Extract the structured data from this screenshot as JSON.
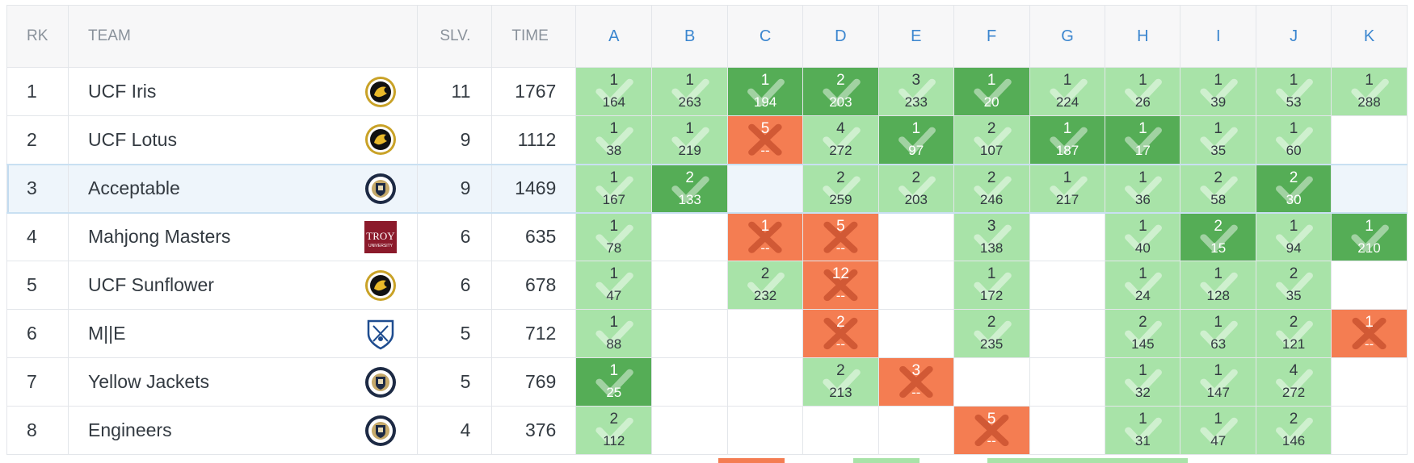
{
  "headers": {
    "rank": "RK",
    "team": "TEAM",
    "solved": "SLV.",
    "time": "TIME",
    "problems": [
      "A",
      "B",
      "C",
      "D",
      "E",
      "F",
      "G",
      "H",
      "I",
      "J",
      "K"
    ]
  },
  "colors": {
    "solved": "#a8e3a8",
    "first_solve": "#55ad56",
    "wrong": "#f47d52",
    "header_link": "#3b86cf"
  },
  "rows": [
    {
      "rank": "1",
      "team": "UCF Iris",
      "logo": "ucf-pegasus-logo",
      "solved": "11",
      "time": "1767",
      "cells": [
        {
          "s": "solved",
          "a": "1",
          "t": "164"
        },
        {
          "s": "solved",
          "a": "1",
          "t": "263"
        },
        {
          "s": "first",
          "a": "1",
          "t": "194"
        },
        {
          "s": "first",
          "a": "2",
          "t": "203"
        },
        {
          "s": "solved",
          "a": "3",
          "t": "233"
        },
        {
          "s": "first",
          "a": "1",
          "t": "20"
        },
        {
          "s": "solved",
          "a": "1",
          "t": "224"
        },
        {
          "s": "solved",
          "a": "1",
          "t": "26"
        },
        {
          "s": "solved",
          "a": "1",
          "t": "39"
        },
        {
          "s": "solved",
          "a": "1",
          "t": "53"
        },
        {
          "s": "solved",
          "a": "1",
          "t": "288"
        }
      ]
    },
    {
      "rank": "2",
      "team": "UCF Lotus",
      "logo": "ucf-pegasus-logo",
      "solved": "9",
      "time": "1112",
      "cells": [
        {
          "s": "solved",
          "a": "1",
          "t": "38"
        },
        {
          "s": "solved",
          "a": "1",
          "t": "219"
        },
        {
          "s": "wrong",
          "a": "5",
          "t": "--"
        },
        {
          "s": "solved",
          "a": "4",
          "t": "272"
        },
        {
          "s": "first",
          "a": "1",
          "t": "97"
        },
        {
          "s": "solved",
          "a": "2",
          "t": "107"
        },
        {
          "s": "first",
          "a": "1",
          "t": "187"
        },
        {
          "s": "first",
          "a": "1",
          "t": "17"
        },
        {
          "s": "solved",
          "a": "1",
          "t": "35"
        },
        {
          "s": "solved",
          "a": "1",
          "t": "60"
        },
        {
          "s": "empty",
          "a": "",
          "t": ""
        }
      ]
    },
    {
      "rank": "3",
      "team": "Acceptable",
      "logo": "georgia-tech-seal-logo",
      "solved": "9",
      "time": "1469",
      "highlight": true,
      "cells": [
        {
          "s": "solved",
          "a": "1",
          "t": "167"
        },
        {
          "s": "first",
          "a": "2",
          "t": "133"
        },
        {
          "s": "empty",
          "a": "",
          "t": ""
        },
        {
          "s": "solved",
          "a": "2",
          "t": "259"
        },
        {
          "s": "solved",
          "a": "2",
          "t": "203"
        },
        {
          "s": "solved",
          "a": "2",
          "t": "246"
        },
        {
          "s": "solved",
          "a": "1",
          "t": "217"
        },
        {
          "s": "solved",
          "a": "1",
          "t": "36"
        },
        {
          "s": "solved",
          "a": "2",
          "t": "58"
        },
        {
          "s": "first",
          "a": "2",
          "t": "30"
        },
        {
          "s": "empty",
          "a": "",
          "t": ""
        }
      ]
    },
    {
      "rank": "4",
      "team": "Mahjong Masters",
      "logo": "troy-university-logo",
      "logo_text": "TROY",
      "logo_sub": "UNIVERSITY",
      "solved": "6",
      "time": "635",
      "cells": [
        {
          "s": "solved",
          "a": "1",
          "t": "78"
        },
        {
          "s": "empty",
          "a": "",
          "t": ""
        },
        {
          "s": "wrong",
          "a": "1",
          "t": "--"
        },
        {
          "s": "wrong",
          "a": "5",
          "t": "--"
        },
        {
          "s": "empty",
          "a": "",
          "t": ""
        },
        {
          "s": "solved",
          "a": "3",
          "t": "138"
        },
        {
          "s": "empty",
          "a": "",
          "t": ""
        },
        {
          "s": "solved",
          "a": "1",
          "t": "40"
        },
        {
          "s": "first",
          "a": "2",
          "t": "15"
        },
        {
          "s": "solved",
          "a": "1",
          "t": "94"
        },
        {
          "s": "first",
          "a": "1",
          "t": "210"
        }
      ]
    },
    {
      "rank": "5",
      "team": "UCF Sunflower",
      "logo": "ucf-pegasus-logo",
      "solved": "6",
      "time": "678",
      "cells": [
        {
          "s": "solved",
          "a": "1",
          "t": "47"
        },
        {
          "s": "empty",
          "a": "",
          "t": ""
        },
        {
          "s": "solved",
          "a": "2",
          "t": "232"
        },
        {
          "s": "wrong",
          "a": "12",
          "t": "--"
        },
        {
          "s": "empty",
          "a": "",
          "t": ""
        },
        {
          "s": "solved",
          "a": "1",
          "t": "172"
        },
        {
          "s": "empty",
          "a": "",
          "t": ""
        },
        {
          "s": "solved",
          "a": "1",
          "t": "24"
        },
        {
          "s": "solved",
          "a": "1",
          "t": "128"
        },
        {
          "s": "solved",
          "a": "2",
          "t": "35"
        },
        {
          "s": "empty",
          "a": "",
          "t": ""
        }
      ]
    },
    {
      "rank": "6",
      "team": "M||E",
      "logo": "emory-shield-logo",
      "solved": "5",
      "time": "712",
      "cells": [
        {
          "s": "solved",
          "a": "1",
          "t": "88"
        },
        {
          "s": "empty",
          "a": "",
          "t": ""
        },
        {
          "s": "empty",
          "a": "",
          "t": ""
        },
        {
          "s": "wrong",
          "a": "2",
          "t": "--"
        },
        {
          "s": "empty",
          "a": "",
          "t": ""
        },
        {
          "s": "solved",
          "a": "2",
          "t": "235"
        },
        {
          "s": "empty",
          "a": "",
          "t": ""
        },
        {
          "s": "solved",
          "a": "2",
          "t": "145"
        },
        {
          "s": "solved",
          "a": "1",
          "t": "63"
        },
        {
          "s": "solved",
          "a": "2",
          "t": "121"
        },
        {
          "s": "wrong",
          "a": "1",
          "t": "--"
        }
      ]
    },
    {
      "rank": "7",
      "team": "Yellow Jackets",
      "logo": "georgia-tech-seal-logo",
      "solved": "5",
      "time": "769",
      "cells": [
        {
          "s": "first",
          "a": "1",
          "t": "25"
        },
        {
          "s": "empty",
          "a": "",
          "t": ""
        },
        {
          "s": "empty",
          "a": "",
          "t": ""
        },
        {
          "s": "solved",
          "a": "2",
          "t": "213"
        },
        {
          "s": "wrong",
          "a": "3",
          "t": "--"
        },
        {
          "s": "empty",
          "a": "",
          "t": ""
        },
        {
          "s": "empty",
          "a": "",
          "t": ""
        },
        {
          "s": "solved",
          "a": "1",
          "t": "32"
        },
        {
          "s": "solved",
          "a": "1",
          "t": "147"
        },
        {
          "s": "solved",
          "a": "4",
          "t": "272"
        },
        {
          "s": "empty",
          "a": "",
          "t": ""
        }
      ]
    },
    {
      "rank": "8",
      "team": "Engineers",
      "logo": "georgia-tech-seal-logo",
      "solved": "4",
      "time": "376",
      "cells": [
        {
          "s": "solved",
          "a": "2",
          "t": "112"
        },
        {
          "s": "empty",
          "a": "",
          "t": ""
        },
        {
          "s": "empty",
          "a": "",
          "t": ""
        },
        {
          "s": "empty",
          "a": "",
          "t": ""
        },
        {
          "s": "empty",
          "a": "",
          "t": ""
        },
        {
          "s": "wrong",
          "a": "5",
          "t": "--"
        },
        {
          "s": "empty",
          "a": "",
          "t": ""
        },
        {
          "s": "solved",
          "a": "1",
          "t": "31"
        },
        {
          "s": "solved",
          "a": "1",
          "t": "47"
        },
        {
          "s": "solved",
          "a": "2",
          "t": "146"
        },
        {
          "s": "empty",
          "a": "",
          "t": ""
        }
      ]
    }
  ]
}
